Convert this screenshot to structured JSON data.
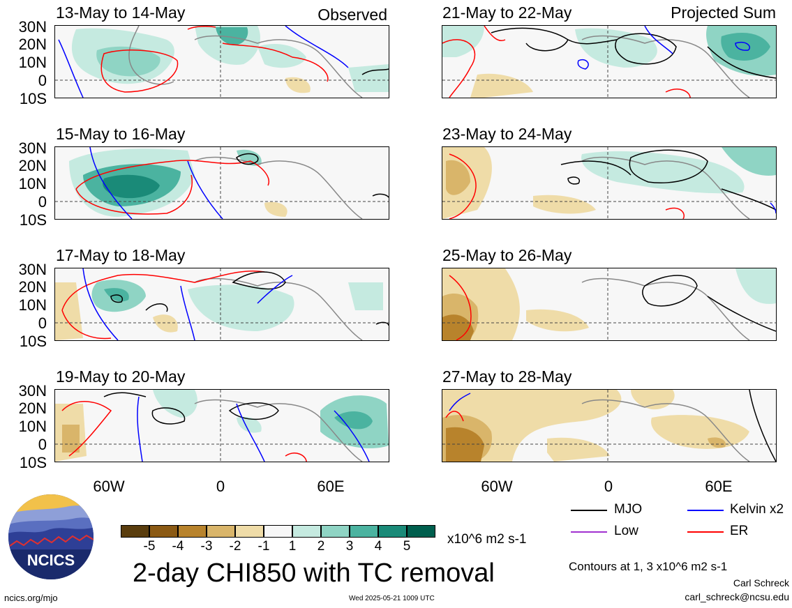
{
  "header": {
    "left_tag": "Observed",
    "right_tag": "Projected Sum"
  },
  "panels": {
    "left": [
      {
        "title": "13-May to 14-May"
      },
      {
        "title": "15-May to 16-May"
      },
      {
        "title": "17-May to 18-May"
      },
      {
        "title": "19-May to 20-May"
      }
    ],
    "right": [
      {
        "title": "21-May to 22-May"
      },
      {
        "title": "23-May to 24-May"
      },
      {
        "title": "25-May to 26-May"
      },
      {
        "title": "27-May to 28-May"
      }
    ]
  },
  "axes": {
    "lat_labels": [
      "30N",
      "20N",
      "10N",
      "0",
      "10S"
    ],
    "lon_labels": [
      "60W",
      "0",
      "60E"
    ]
  },
  "colorbar": {
    "ticks": [
      "-5",
      "-4",
      "-3",
      "-2",
      "-1",
      "1",
      "2",
      "3",
      "4",
      "5"
    ],
    "colors": [
      "#5a3d0e",
      "#8b5a14",
      "#b8832c",
      "#d9b56a",
      "#efdca8",
      "#f7f7f7",
      "#c5eae0",
      "#8fd4c4",
      "#4bb3a0",
      "#1a8a78",
      "#005f4e"
    ],
    "units": "x10^6 m2 s-1"
  },
  "legend": {
    "mjo": "MJO",
    "kelvin": "Kelvin x2",
    "low": "Low",
    "er": "ER",
    "colors": {
      "mjo": "#000000",
      "kelvin": "#0000ff",
      "low": "#a030d0",
      "er": "#ff0000"
    },
    "contours_note": "Contours at 1, 3 x10^6 m2 s-1"
  },
  "footer": {
    "title": "2-day CHI850 with TC removal",
    "url": "ncics.org/mjo",
    "timestamp": "Wed 2025-05-21 1009 UTC",
    "author": "Carl Schreck",
    "email": "carl_schreck@ncsu.edu",
    "logo_text": "NCICS"
  }
}
